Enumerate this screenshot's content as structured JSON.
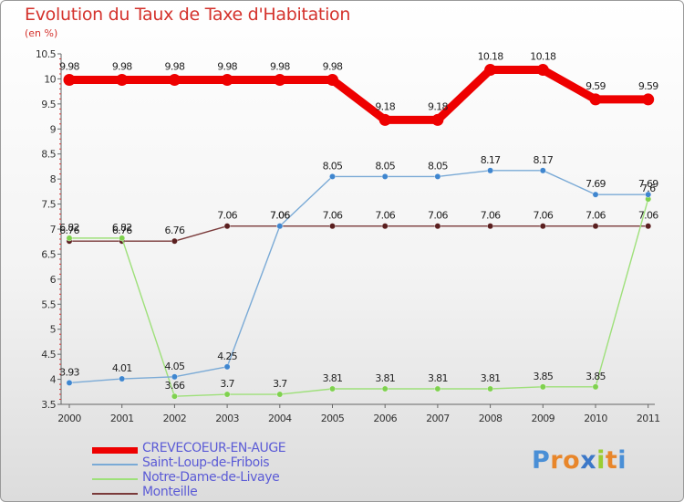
{
  "header": {
    "title": "Evolution du Taux de Taxe d'Habitation",
    "unit": "(en %)"
  },
  "brand": {
    "logo_text": "Proxiti"
  },
  "colors": {
    "title": "#d4322c",
    "legend_text": "#5b5bd6"
  },
  "chart_data": {
    "type": "line",
    "title": "Evolution du Taux de Taxe d'Habitation",
    "subtitle": "(en %)",
    "xlabel": "",
    "ylabel": "",
    "x": [
      "2000",
      "2001",
      "2002",
      "2003",
      "2004",
      "2005",
      "2006",
      "2007",
      "2008",
      "2009",
      "2010",
      "2011"
    ],
    "ylim": [
      3.5,
      10.5
    ],
    "yticks": [
      "3.5",
      "4",
      "4.5",
      "5",
      "5.5",
      "6",
      "6.5",
      "7",
      "7.5",
      "8",
      "8.5",
      "9",
      "9.5",
      "10",
      "10.5"
    ],
    "grid": false,
    "legend_position": "bottom-left",
    "series": [
      {
        "name": "CREVECOEUR-EN-AUGE",
        "color": "#ee0000",
        "stroke": "thick",
        "values": [
          9.98,
          9.98,
          9.98,
          9.98,
          9.98,
          9.98,
          9.18,
          9.18,
          10.18,
          10.18,
          9.59,
          9.59
        ],
        "labels": [
          "9.98",
          "9.98",
          "9.98",
          "9.98",
          "9.98",
          "9.98",
          "9.18",
          "9.18",
          "10.18",
          "10.18",
          "9.59",
          "9.59"
        ]
      },
      {
        "name": "Saint-Loup-de-Fribois",
        "color": "#7aaad6",
        "marker": "#3f86cf",
        "stroke": "thin",
        "values": [
          3.93,
          4.01,
          4.05,
          4.25,
          7.06,
          8.05,
          8.05,
          8.05,
          8.17,
          8.17,
          7.69,
          7.69
        ],
        "labels": [
          "3.93",
          "4.01",
          "4.05",
          "4.25",
          "7.06",
          "8.05",
          "8.05",
          "8.05",
          "8.17",
          "8.17",
          "7.69",
          "7.69"
        ]
      },
      {
        "name": "Notre-Dame-de-Livaye",
        "color": "#9ee07a",
        "marker": "#7fd14f",
        "stroke": "thin",
        "values": [
          6.82,
          6.82,
          3.66,
          3.7,
          3.7,
          3.81,
          3.81,
          3.81,
          3.81,
          3.85,
          3.85,
          7.6
        ],
        "labels": [
          "6.82",
          "6.82",
          "3.66",
          "3.7",
          "3.7",
          "3.81",
          "3.81",
          "3.81",
          "3.81",
          "3.85",
          "3.85",
          "7.6"
        ]
      },
      {
        "name": "Monteille",
        "color": "#7a3a3a",
        "marker": "#5a1f1f",
        "stroke": "thin",
        "values": [
          6.76,
          6.76,
          6.76,
          7.06,
          7.06,
          7.06,
          7.06,
          7.06,
          7.06,
          7.06,
          7.06,
          7.06
        ],
        "labels": [
          "6.76",
          "6.76",
          "6.76",
          "7.06",
          "7.06",
          "7.06",
          "7.06",
          "7.06",
          "7.06",
          "7.06",
          "7.06",
          "7.06"
        ]
      }
    ]
  }
}
